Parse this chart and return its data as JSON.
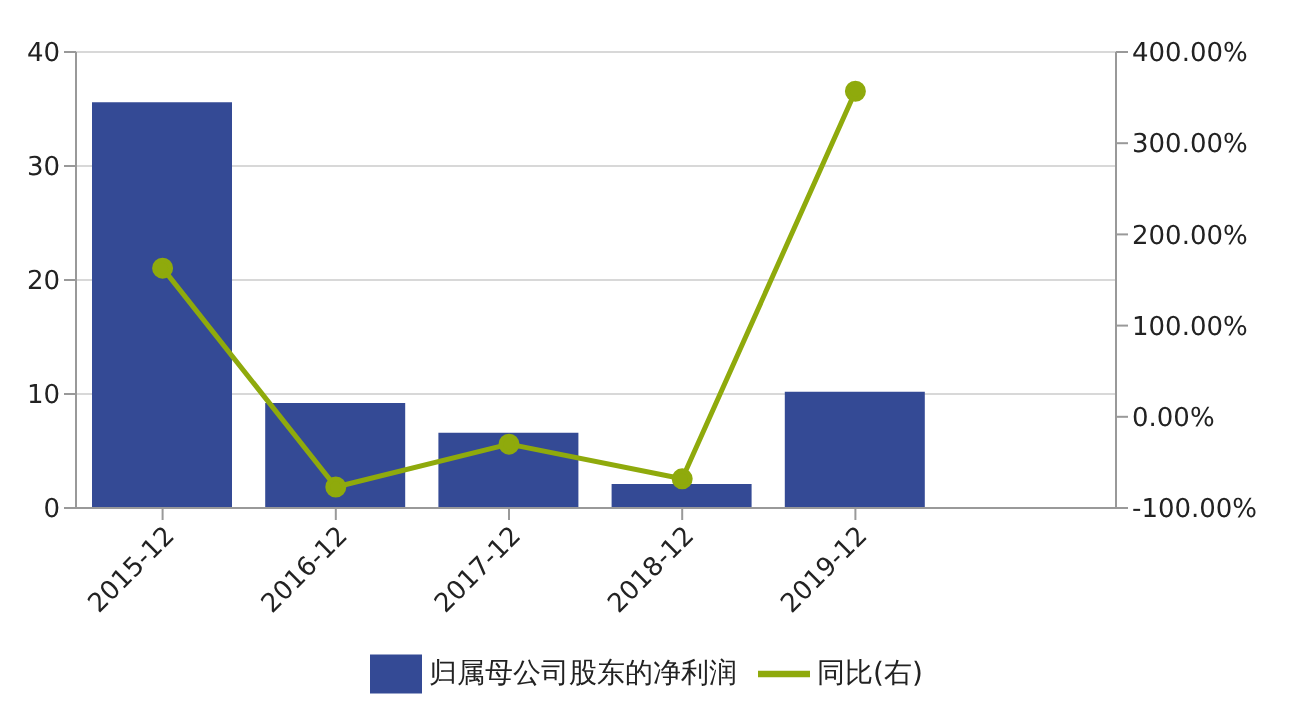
{
  "chart_data": {
    "type": "bar",
    "categories": [
      "2015-12",
      "2016-12",
      "2017-12",
      "2018-12",
      "2019-12"
    ],
    "series": [
      {
        "name": "归属母公司股东的净利润",
        "color": "#344a95",
        "values": [
          35.6,
          9.2,
          6.6,
          2.1,
          10.2
        ]
      },
      {
        "name": "同比(右)",
        "type": "line",
        "axis": "y2",
        "color": "#8faa0c",
        "marker": "circle",
        "values": [
          163,
          -77,
          -30,
          -68,
          357
        ]
      }
    ],
    "ylim": [
      0,
      40
    ],
    "yticks": [
      0,
      10,
      20,
      30,
      40
    ],
    "y2lim": [
      -100,
      400
    ],
    "y2ticks": [
      {
        "value": -100,
        "label": "-100.00%"
      },
      {
        "value": 0,
        "label": "0.00%"
      },
      {
        "value": 100,
        "label": "100.00%"
      },
      {
        "value": 200,
        "label": "200.00%"
      },
      {
        "value": 300,
        "label": "300.00%"
      },
      {
        "value": 400,
        "label": "400.00%"
      }
    ],
    "grid": "y",
    "legend": "bottom"
  }
}
